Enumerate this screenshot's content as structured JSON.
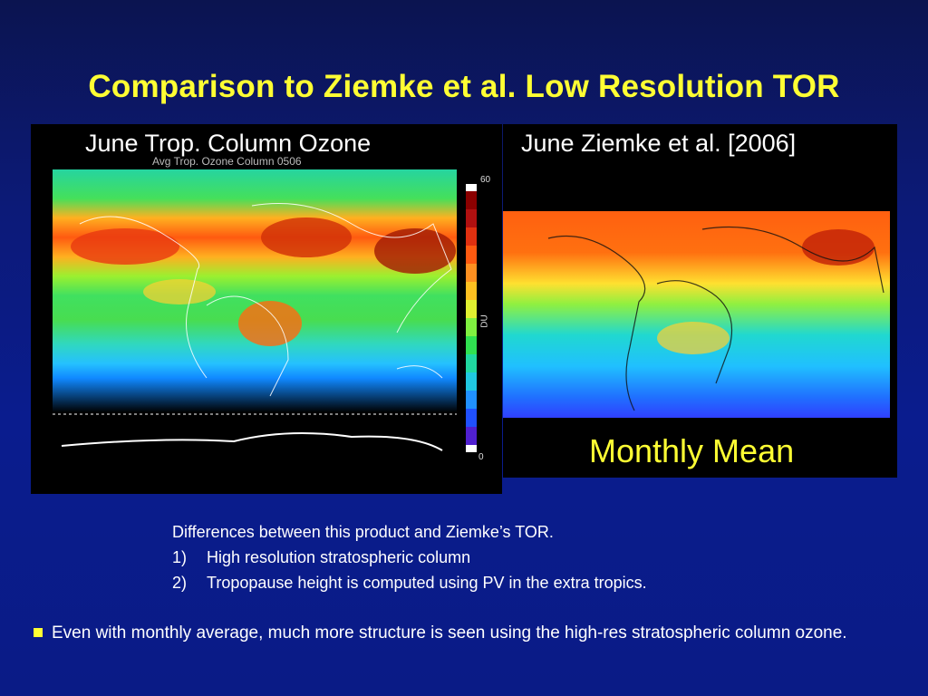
{
  "slide": {
    "title": "Comparison to Ziemke et al. Low Resolution TOR"
  },
  "left_panel": {
    "caption": "June Trop. Column Ozone",
    "plot_title": "Avg Trop. Ozone Column 0506",
    "colorbar": {
      "top_label": "60",
      "bottom_label": "0",
      "unit": "DU"
    }
  },
  "right_panel": {
    "caption": "June  Ziemke et al. [2006]",
    "subcaption": "Monthly Mean"
  },
  "notes": {
    "heading": "Differences between this product and Ziemke’s TOR.",
    "items": [
      {
        "num": "1)",
        "text": "High resolution stratospheric column"
      },
      {
        "num": "2)",
        "text": "Tropopause height is computed using PV in the extra tropics."
      }
    ]
  },
  "bullet": {
    "text": "Even with monthly average, much more structure is seen using the high-res stratospheric column ozone."
  },
  "colors": {
    "title": "#ffff33",
    "background": "#0a1b86",
    "panel": "#000000"
  }
}
